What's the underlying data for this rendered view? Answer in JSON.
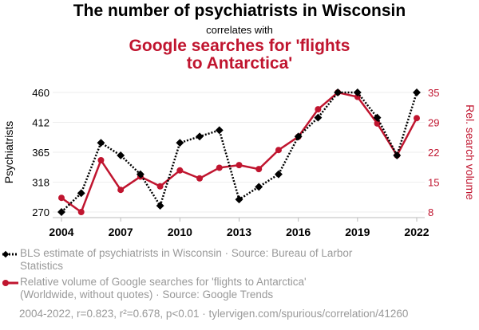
{
  "chart_data": {
    "type": "line",
    "title": "The number of psychiatrists in Wisconsin",
    "subtitle": "correlates with",
    "title2_lines": [
      "Google searches for 'flights",
      "to Antarctica'"
    ],
    "x": [
      2004,
      2005,
      2006,
      2007,
      2008,
      2009,
      2010,
      2011,
      2012,
      2013,
      2014,
      2015,
      2016,
      2017,
      2018,
      2019,
      2020,
      2021,
      2022
    ],
    "x_ticks": [
      "2004",
      "2007",
      "2010",
      "2013",
      "2016",
      "2019",
      "2022"
    ],
    "ylabel_left": "Psychiatrists",
    "ylabel_right": "Rel. search volume",
    "ylim_left": [
      270,
      460
    ],
    "ylim_right": [
      8,
      35
    ],
    "left_ticks": [
      "270",
      "318",
      "365",
      "412",
      "460"
    ],
    "right_ticks": [
      "8",
      "15",
      "22",
      "29",
      "35"
    ],
    "series": [
      {
        "name": "BLS estimate of psychiatrists in Wisconsin",
        "axis": "left",
        "color": "#000000",
        "values": [
          270,
          300,
          380,
          360,
          330,
          280,
          380,
          390,
          400,
          290,
          310,
          330,
          390,
          420,
          460,
          460,
          420,
          360,
          460
        ]
      },
      {
        "name": "Relative volume of Google searches for 'flights to Antarctica'",
        "axis": "right",
        "color": "#c0152f",
        "values": [
          11.2,
          8,
          19.7,
          13,
          16,
          13.8,
          17.4,
          15.6,
          18,
          18.6,
          17.7,
          22,
          25,
          31.2,
          35,
          34,
          28,
          20.8,
          29.2
        ]
      }
    ],
    "legend": [
      {
        "lines": [
          "BLS estimate of psychiatrists in Wisconsin · Source: Bureau of Larbor",
          "Statistics"
        ]
      },
      {
        "lines": [
          "Relative volume of Google searches for 'flights to Antarctica'",
          "(Worldwide, without quotes) · Source: Google Trends"
        ]
      }
    ],
    "footer": "2004-2022, r=0.823, r²=0.678, p<0.01 · tylervigen.com/spurious/correlation/41260"
  }
}
